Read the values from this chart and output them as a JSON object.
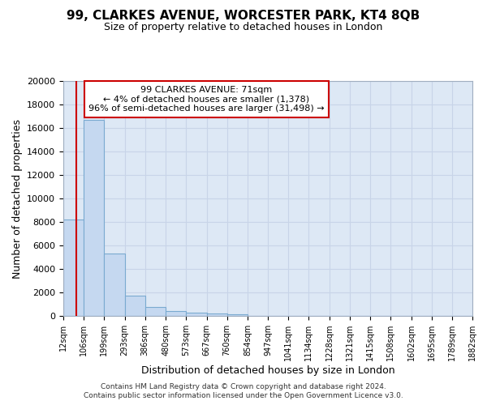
{
  "title": "99, CLARKES AVENUE, WORCESTER PARK, KT4 8QB",
  "subtitle": "Size of property relative to detached houses in London",
  "xlabel": "Distribution of detached houses by size in London",
  "ylabel": "Number of detached properties",
  "bar_color": "#c5d8f0",
  "bar_edge_color": "#7aaad0",
  "bin_edges": [
    12,
    106,
    199,
    293,
    386,
    480,
    573,
    667,
    760,
    854,
    947,
    1041,
    1134,
    1228,
    1321,
    1415,
    1508,
    1602,
    1695,
    1789,
    1882
  ],
  "bar_heights": [
    8200,
    16700,
    5300,
    1750,
    750,
    400,
    250,
    200,
    150,
    0,
    0,
    0,
    0,
    0,
    0,
    0,
    0,
    0,
    0,
    0
  ],
  "property_size": 71,
  "vline_color": "#cc0000",
  "annotation_line1": "99 CLARKES AVENUE: 71sqm",
  "annotation_line2": "← 4% of detached houses are smaller (1,378)",
  "annotation_line3": "96% of semi-detached houses are larger (31,498) →",
  "annotation_box_color": "#cc0000",
  "annotation_bg": "#ffffff",
  "ylim": [
    0,
    20000
  ],
  "yticks": [
    0,
    2000,
    4000,
    6000,
    8000,
    10000,
    12000,
    14000,
    16000,
    18000,
    20000
  ],
  "xlim": [
    12,
    1882
  ],
  "grid_color": "#c8d4e8",
  "bg_color": "#dde8f5",
  "footer_line1": "Contains HM Land Registry data © Crown copyright and database right 2024.",
  "footer_line2": "Contains public sector information licensed under the Open Government Licence v3.0.",
  "tick_labels": [
    "12sqm",
    "106sqm",
    "199sqm",
    "293sqm",
    "386sqm",
    "480sqm",
    "573sqm",
    "667sqm",
    "760sqm",
    "854sqm",
    "947sqm",
    "1041sqm",
    "1134sqm",
    "1228sqm",
    "1321sqm",
    "1415sqm",
    "1508sqm",
    "1602sqm",
    "1695sqm",
    "1789sqm",
    "1882sqm"
  ]
}
